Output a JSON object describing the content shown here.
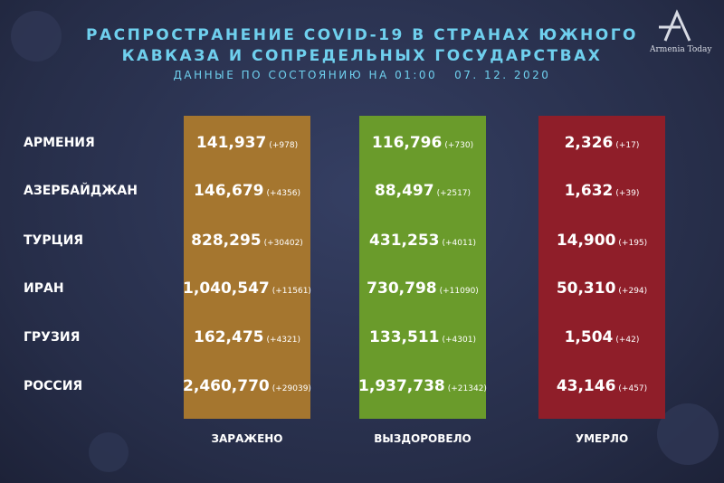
{
  "header": {
    "title_lines": [
      "РАСПРОСТРАНЕНИЕ COVID-19 В СТРАНАХ ЮЖНОГО",
      "КАВКАЗА И СОПРЕДЕЛЬНЫХ ГОСУДАРСТВАХ"
    ],
    "subtitle": "ДАННЫЕ ПО СОСТОЯНИЮ НА 01:00   07. 12. 2020",
    "logo": "Armenia Today"
  },
  "table": {
    "columns": [
      "ЗАРАЖЕНО",
      "ВЫЗДОРОВЕЛО",
      "УМЕРЛО"
    ],
    "rows": [
      [
        "АРМЕНИЯ",
        "141,937",
        "(+978)",
        "116,796",
        "(+730)",
        "2,326",
        "(+17)"
      ],
      [
        "АЗЕРБАЙДЖАН",
        "146,679",
        "(+4356)",
        "88,497",
        "(+2517)",
        "1,632",
        "(+39)"
      ],
      [
        "ТУРЦИЯ",
        "828,295",
        "(+30402)",
        "431,253",
        "(+4011)",
        "14,900",
        "(+195)"
      ],
      [
        "ИРАН",
        "1,040,547",
        "(+11561)",
        "730,798",
        "(+11090)",
        "50,310",
        "(+294)"
      ],
      [
        "ГРУЗИЯ",
        "162,475",
        "(+4321)",
        "133,511",
        "(+4301)",
        "1,504",
        "(+42)"
      ],
      [
        "РОССИЯ",
        "2,460,770",
        "(+29039)",
        "1,937,738",
        "(+21342)",
        "43,146",
        "(+457)"
      ]
    ]
  }
}
